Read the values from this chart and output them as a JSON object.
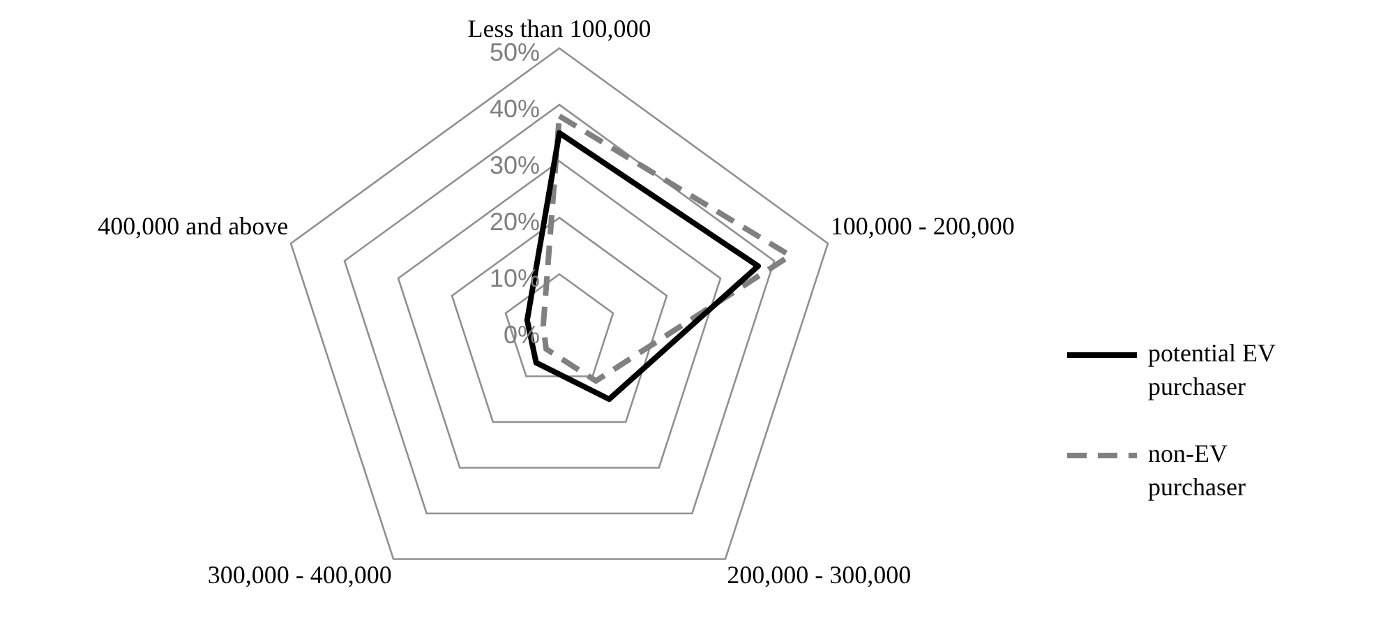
{
  "chart_data": {
    "type": "radar",
    "categories": [
      "Less than 100,000",
      "100,000 - 200,000",
      "200,000 - 300,000",
      "300,000 - 400,000",
      "400,000 and above"
    ],
    "series": [
      {
        "name": "potential EV purchaser",
        "color": "#000000",
        "values": [
          35,
          37,
          15,
          7,
          6
        ],
        "line_style": "solid"
      },
      {
        "name": "non-EV purchaser",
        "color": "#808080",
        "values": [
          38,
          43,
          11,
          4,
          3
        ],
        "line_style": "dashed"
      }
    ],
    "ylim": [
      0,
      50
    ],
    "yticks": [
      {
        "value": 0,
        "label": "0%"
      },
      {
        "value": 10,
        "label": "10%"
      },
      {
        "value": 20,
        "label": "20%"
      },
      {
        "value": 30,
        "label": "30%"
      },
      {
        "value": 40,
        "label": "40%"
      },
      {
        "value": 50,
        "label": "50%"
      }
    ],
    "grid": true,
    "legend": "right",
    "marker": "none"
  }
}
